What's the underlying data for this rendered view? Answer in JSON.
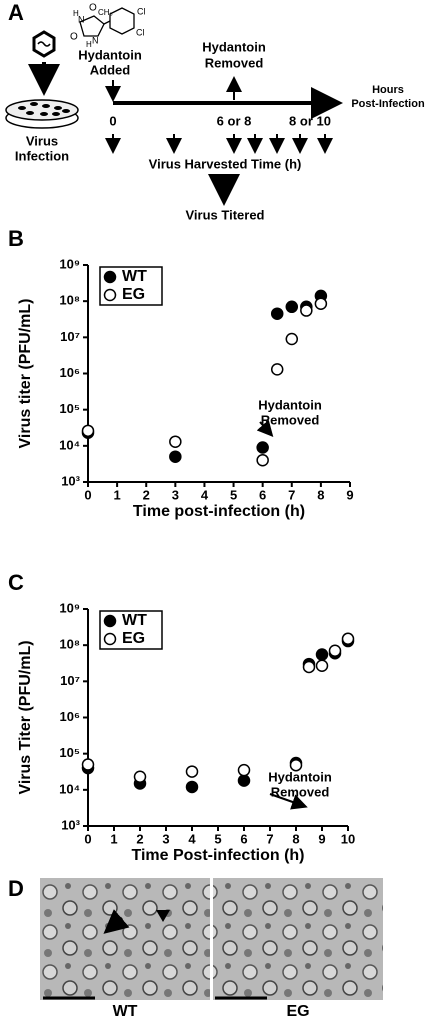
{
  "panel_a": {
    "letter": "A",
    "hydantoin_added": [
      "Hydantoin",
      "Added"
    ],
    "hydantoin_removed": [
      "Hydantoin",
      "Removed"
    ],
    "axis_end": [
      "Hours",
      "Post-Infection"
    ],
    "infection": [
      "Virus",
      "Infection"
    ],
    "t0": "0",
    "t1": "6 or 8",
    "t2": "8 or 10",
    "harvest": "Virus Harvested Time (h)",
    "titered": "Virus Titered",
    "chem": {
      "o1": "O",
      "o2": "O",
      "n1": "N",
      "n2": "N",
      "h1": "H",
      "h2": "H",
      "ch3": "CH₃",
      "cl1": "Cl",
      "cl2": "Cl"
    }
  },
  "chart_data": [
    {
      "type": "scatter",
      "panel_label": "B",
      "xlabel": "Time post-infection (h)",
      "ylabel": "Virus titer  (PFU/mL)",
      "log_y": true,
      "x": [
        0,
        3,
        6,
        6.5,
        7,
        7.5,
        8
      ],
      "series": [
        {
          "name": "WT",
          "color": "#000000",
          "filled": true,
          "values": [
            23000,
            5000,
            9000,
            45000000,
            70000000,
            70000000,
            140000000
          ]
        },
        {
          "name": "EG",
          "color": "#000000",
          "filled": false,
          "values": [
            26000,
            13000,
            4000,
            1300000,
            9000000,
            55000000,
            85000000
          ]
        }
      ],
      "xlim": [
        0,
        9
      ],
      "xticks": [
        0,
        1,
        2,
        3,
        4,
        5,
        6,
        7,
        8,
        9
      ],
      "ylim": [
        1000,
        1000000000
      ],
      "yticks": [
        {
          "value": 1000,
          "label": "10³"
        },
        {
          "value": 10000,
          "label": "10⁴"
        },
        {
          "value": 100000,
          "label": "10⁵"
        },
        {
          "value": 1000000,
          "label": "10⁶"
        },
        {
          "value": 10000000,
          "label": "10⁷"
        },
        {
          "value": 100000000,
          "label": "10⁸"
        },
        {
          "value": 1000000000,
          "label": "10⁹"
        }
      ],
      "annotation": [
        "Hydantoin",
        "Removed"
      ],
      "legend": "upper left"
    },
    {
      "type": "scatter",
      "panel_label": "C",
      "xlabel": "Time Post-infection (h)",
      "ylabel": "Virus Titer (PFU/mL)",
      "log_y": true,
      "x": [
        0,
        2,
        4,
        6,
        8,
        8.5,
        9,
        9.5,
        10
      ],
      "series": [
        {
          "name": "WT",
          "color": "#000000",
          "filled": true,
          "values": [
            40000,
            15000,
            12000,
            18000,
            55000,
            30000000,
            55000000,
            60000000,
            130000000
          ]
        },
        {
          "name": "EG",
          "color": "#000000",
          "filled": false,
          "values": [
            50000,
            23000,
            32000,
            35000,
            48000,
            25000000,
            27000000,
            70000000,
            150000000
          ]
        }
      ],
      "xlim": [
        0,
        10
      ],
      "xticks": [
        0,
        1,
        2,
        3,
        4,
        5,
        6,
        7,
        8,
        9,
        10
      ],
      "ylim": [
        1000,
        1000000000
      ],
      "yticks": [
        {
          "value": 1000,
          "label": "10³"
        },
        {
          "value": 10000,
          "label": "10⁴"
        },
        {
          "value": 100000,
          "label": "10⁵"
        },
        {
          "value": 1000000,
          "label": "10⁶"
        },
        {
          "value": 10000000,
          "label": "10⁷"
        },
        {
          "value": 100000000,
          "label": "10⁸"
        },
        {
          "value": 1000000000,
          "label": "10⁹"
        }
      ],
      "annotation": [
        "Hydantoin",
        "Removed"
      ],
      "legend": "upper left"
    }
  ],
  "panel_d": {
    "letter": "D",
    "left": "WT",
    "right": "EG"
  }
}
